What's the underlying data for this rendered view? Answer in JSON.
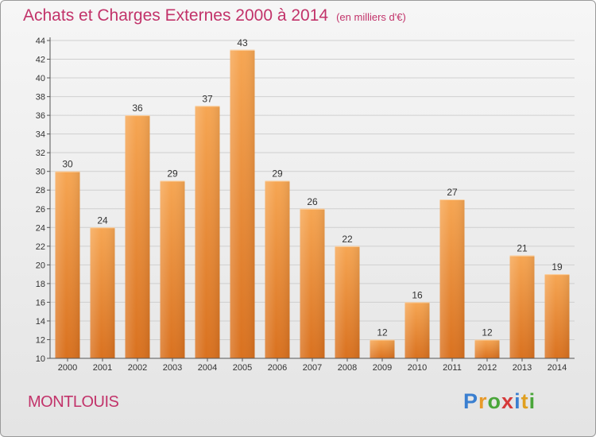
{
  "title": "Achats et Charges Externes 2000 à 2014",
  "subtitle": "(en milliers d'€)",
  "commune": "MONTLOUIS",
  "logo": {
    "text": "Proxiti",
    "letters": [
      "P",
      "r",
      "o",
      "x",
      "i",
      "t",
      "i"
    ],
    "colors": [
      "#3a7fd0",
      "#e89a2a",
      "#4aa63a",
      "#d63a3a",
      "#3a7fd0",
      "#e0a020",
      "#4aa63a"
    ]
  },
  "colors": {
    "accent": "#c2336a",
    "bar_top": "#f6a653",
    "bar_bottom": "#d9711f",
    "axis": "#555555",
    "grid": "#cfcfcf"
  },
  "chart_data": {
    "type": "bar",
    "categories": [
      "2000",
      "2001",
      "2002",
      "2003",
      "2004",
      "2005",
      "2006",
      "2007",
      "2008",
      "2009",
      "2010",
      "2011",
      "2012",
      "2013",
      "2014"
    ],
    "values": [
      30,
      24,
      36,
      29,
      37,
      43,
      29,
      26,
      22,
      12,
      16,
      27,
      12,
      21,
      19
    ],
    "ylim": [
      10,
      44
    ],
    "yticks": [
      10,
      12,
      14,
      16,
      18,
      20,
      22,
      24,
      26,
      28,
      30,
      32,
      34,
      36,
      38,
      40,
      42,
      44
    ],
    "grid": "horizontal",
    "data_labels": true
  }
}
